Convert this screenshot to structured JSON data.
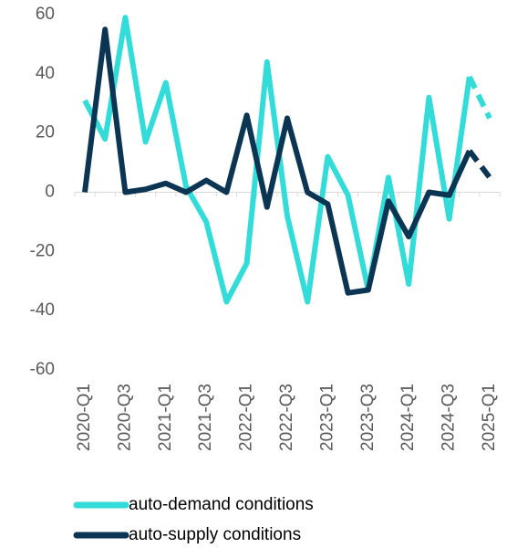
{
  "chart_data": {
    "type": "line",
    "categories": [
      "2020-Q1",
      null,
      "2020-Q3",
      null,
      "2021-Q1",
      null,
      "2021-Q3",
      null,
      "2022-Q1",
      null,
      "2022-Q3",
      null,
      "2023-Q1",
      null,
      "2023-Q3",
      null,
      "2024-Q1",
      null,
      "2024-Q3",
      null,
      "2025-Q1"
    ],
    "series": [
      {
        "name": "auto-demand conditions",
        "color": "#33dcd8",
        "values": [
          31,
          18,
          59,
          17,
          37,
          2,
          -10,
          -37,
          -24,
          44,
          -8,
          -37,
          12,
          -1,
          -33,
          5,
          -31,
          32,
          -9,
          39,
          25
        ]
      },
      {
        "name": "auto-supply conditions",
        "color": "#0b3553",
        "values": [
          0,
          55,
          0,
          1,
          3,
          0,
          4,
          0,
          26,
          -5,
          25,
          0,
          -4,
          -34,
          -33,
          -3,
          -15,
          0,
          -1,
          14,
          5
        ]
      }
    ],
    "dashed_from": 19,
    "ylim": [
      -60,
      60
    ],
    "yticks": [
      -60,
      -40,
      -20,
      0,
      20,
      40,
      60
    ],
    "grid": false,
    "legend": "bottom"
  }
}
